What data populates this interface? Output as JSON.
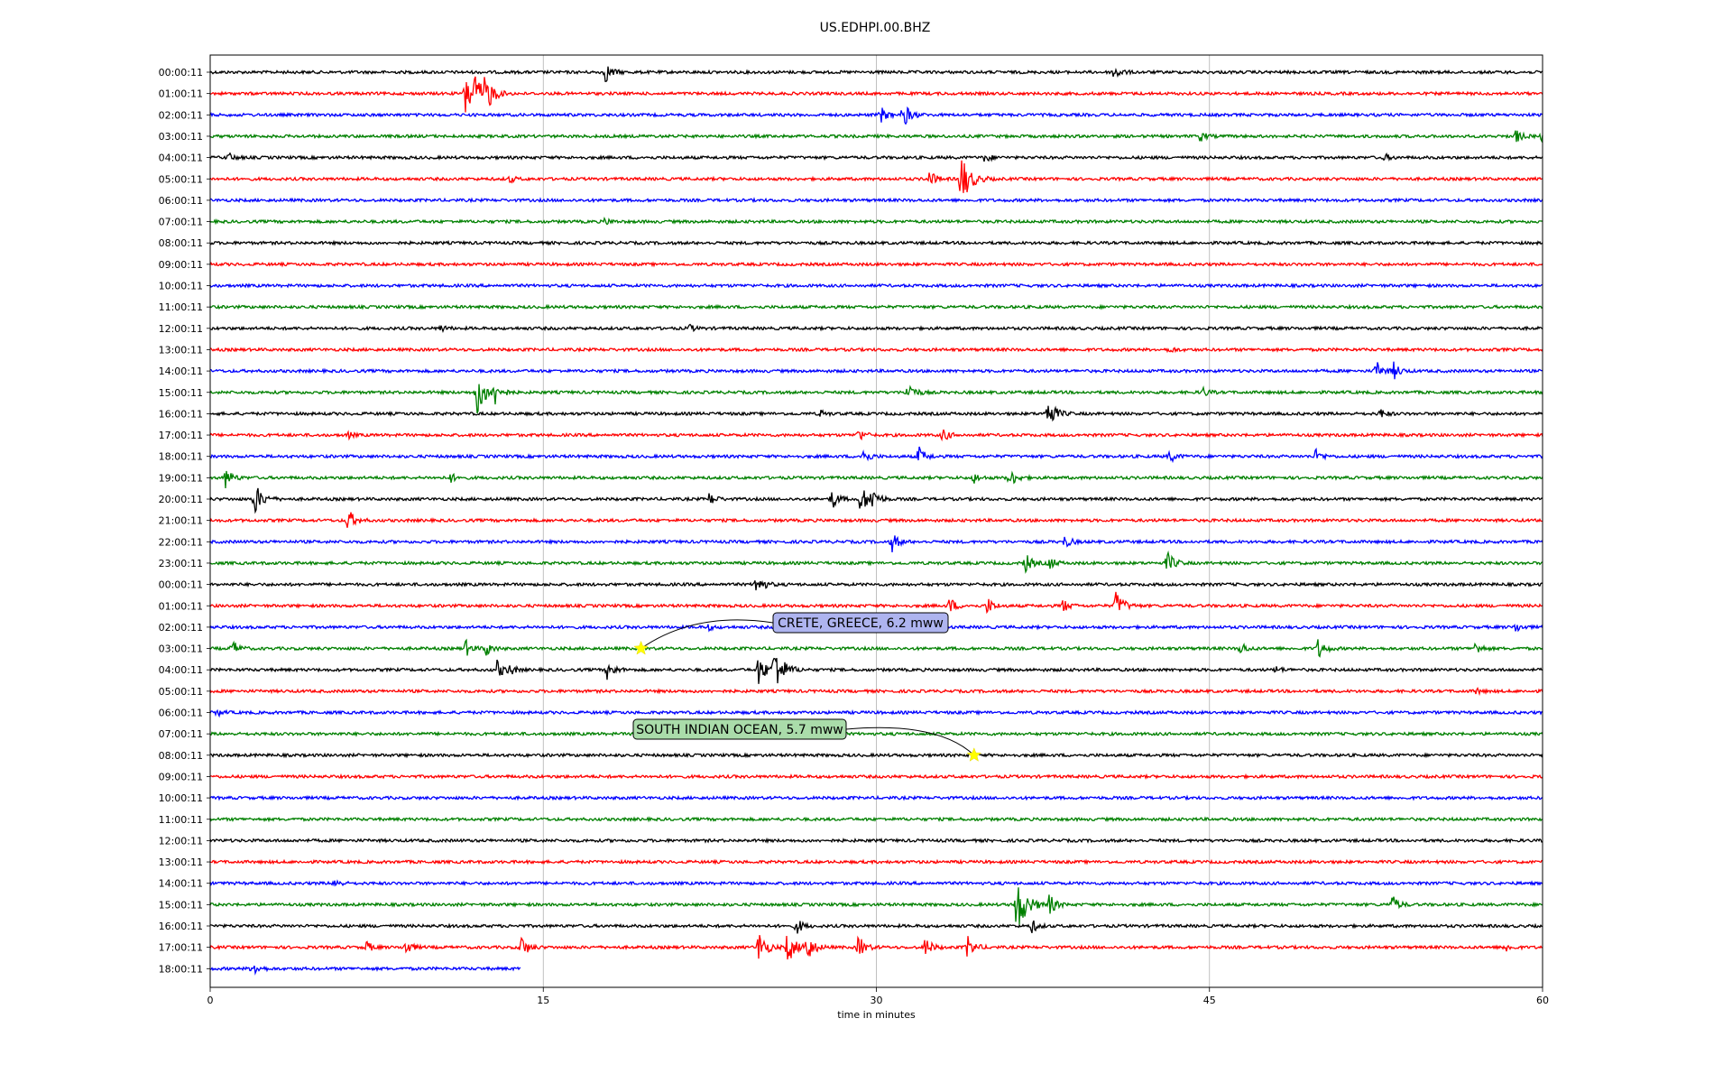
{
  "chart_data": {
    "type": "line",
    "title": "US.EDHPI.00.BHZ",
    "xlabel": "time in minutes",
    "xlim": [
      0,
      60
    ],
    "x_ticks": [
      0,
      15,
      30,
      45,
      60
    ],
    "grid": "vertical",
    "colors": [
      "#000000",
      "#ff0000",
      "#0000ff",
      "#008000"
    ],
    "rows": [
      {
        "label": "00:00:11",
        "events": [
          [
            17.8,
            0.6
          ],
          [
            40.7,
            0.5
          ]
        ]
      },
      {
        "label": "01:00:11",
        "events": [
          [
            11.5,
            1.4
          ],
          [
            12.4,
            1.1
          ],
          [
            11.9,
            0.9
          ]
        ]
      },
      {
        "label": "02:00:11",
        "events": [
          [
            30.2,
            0.5
          ],
          [
            31.2,
            0.8
          ]
        ]
      },
      {
        "label": "03:00:11",
        "events": [
          [
            44.6,
            0.3
          ],
          [
            58.8,
            0.4
          ],
          [
            60.0,
            0.5
          ]
        ]
      },
      {
        "label": "04:00:11",
        "events": [
          [
            0.8,
            0.3
          ],
          [
            34.9,
            0.3
          ],
          [
            52.9,
            0.2
          ]
        ]
      },
      {
        "label": "05:00:11",
        "events": [
          [
            33.8,
            1.6
          ],
          [
            32.4,
            0.5
          ],
          [
            13.5,
            0.2
          ]
        ]
      },
      {
        "label": "06:00:11",
        "events": []
      },
      {
        "label": "07:00:11",
        "events": [
          [
            17.8,
            0.2
          ]
        ]
      },
      {
        "label": "08:00:11",
        "events": []
      },
      {
        "label": "09:00:11",
        "events": []
      },
      {
        "label": "10:00:11",
        "events": []
      },
      {
        "label": "11:00:11",
        "events": []
      },
      {
        "label": "12:00:11",
        "events": [
          [
            10.4,
            0.2
          ],
          [
            21.6,
            0.2
          ]
        ]
      },
      {
        "label": "13:00:11",
        "events": [
          [
            43.2,
            0.2
          ]
        ]
      },
      {
        "label": "14:00:11",
        "events": [
          [
            52.5,
            0.6
          ],
          [
            53.3,
            0.5
          ]
        ]
      },
      {
        "label": "15:00:11",
        "events": [
          [
            12.0,
            1.4
          ],
          [
            12.8,
            0.7
          ],
          [
            31.4,
            0.7
          ],
          [
            44.7,
            0.3
          ]
        ]
      },
      {
        "label": "16:00:11",
        "events": [
          [
            37.7,
            1.0
          ],
          [
            52.7,
            0.3
          ],
          [
            27.5,
            0.2
          ]
        ]
      },
      {
        "label": "17:00:11",
        "events": [
          [
            29.2,
            0.4
          ],
          [
            33.0,
            0.4
          ],
          [
            6.2,
            0.2
          ]
        ]
      },
      {
        "label": "18:00:11",
        "events": [
          [
            29.4,
            0.5
          ],
          [
            31.9,
            0.6
          ],
          [
            43.2,
            0.4
          ],
          [
            49.8,
            0.4
          ]
        ]
      },
      {
        "label": "19:00:11",
        "events": [
          [
            0.7,
            0.6
          ],
          [
            10.8,
            0.3
          ],
          [
            36.0,
            0.6
          ],
          [
            34.4,
            0.3
          ]
        ]
      },
      {
        "label": "20:00:11",
        "events": [
          [
            2.0,
            1.0
          ],
          [
            22.5,
            0.4
          ],
          [
            28.0,
            0.6
          ],
          [
            29.3,
            0.9
          ],
          [
            29.8,
            0.6
          ]
        ]
      },
      {
        "label": "21:00:11",
        "events": [
          [
            6.2,
            0.7
          ]
        ]
      },
      {
        "label": "22:00:11",
        "events": [
          [
            30.7,
            0.6
          ],
          [
            38.5,
            0.4
          ]
        ]
      },
      {
        "label": "23:00:11",
        "events": [
          [
            36.7,
            0.6
          ],
          [
            43.1,
            0.7
          ],
          [
            37.8,
            0.4
          ]
        ]
      },
      {
        "label": "00:00:11",
        "events": [
          [
            24.6,
            0.7
          ]
        ]
      },
      {
        "label": "01:00:11",
        "events": [
          [
            40.8,
            0.9
          ],
          [
            33.3,
            0.5
          ],
          [
            35.0,
            0.5
          ],
          [
            38.4,
            0.4
          ]
        ]
      },
      {
        "label": "02:00:11",
        "events": [
          [
            22.4,
            0.2
          ],
          [
            58.8,
            0.3
          ]
        ]
      },
      {
        "label": "03:00:11",
        "events": [
          [
            1.0,
            0.5
          ],
          [
            11.5,
            0.5
          ],
          [
            12.4,
            0.5
          ],
          [
            46.4,
            0.4
          ],
          [
            49.9,
            0.6
          ],
          [
            57.0,
            0.4
          ]
        ]
      },
      {
        "label": "04:00:11",
        "events": [
          [
            25.4,
            1.5
          ],
          [
            24.7,
            0.9
          ],
          [
            12.9,
            0.6
          ],
          [
            17.9,
            0.6
          ],
          [
            13.5,
            0.3
          ],
          [
            48.0,
            0.2
          ]
        ]
      },
      {
        "label": "05:00:11",
        "events": [
          [
            57.0,
            0.2
          ]
        ]
      },
      {
        "label": "06:00:11",
        "events": [
          [
            0.3,
            0.2
          ]
        ]
      },
      {
        "label": "07:00:11",
        "events": []
      },
      {
        "label": "08:00:11",
        "events": []
      },
      {
        "label": "09:00:11",
        "events": []
      },
      {
        "label": "10:00:11",
        "events": []
      },
      {
        "label": "11:00:11",
        "events": []
      },
      {
        "label": "12:00:11",
        "events": []
      },
      {
        "label": "13:00:11",
        "events": []
      },
      {
        "label": "14:00:11",
        "events": [
          [
            5.6,
            0.3
          ]
        ]
      },
      {
        "label": "15:00:11",
        "events": [
          [
            36.3,
            1.8
          ],
          [
            37.8,
            0.6
          ],
          [
            53.2,
            0.6
          ]
        ]
      },
      {
        "label": "16:00:11",
        "events": [
          [
            26.4,
            0.5
          ],
          [
            37.0,
            0.4
          ]
        ]
      },
      {
        "label": "17:00:11",
        "events": [
          [
            24.7,
            1.0
          ],
          [
            26.0,
            1.0
          ],
          [
            26.8,
            1.0
          ],
          [
            29.2,
            0.7
          ],
          [
            32.2,
            0.6
          ],
          [
            34.1,
            0.7
          ],
          [
            14.0,
            0.7
          ],
          [
            8.8,
            0.5
          ],
          [
            7.0,
            0.4
          ],
          [
            58.3,
            0.3
          ]
        ]
      },
      {
        "label": "18:00:11",
        "end": 14.0,
        "events": [
          [
            1.9,
            0.5
          ]
        ]
      }
    ],
    "annotations": [
      {
        "text": "CRETE, GREECE, 6.2 mww",
        "row": 27,
        "x": 19.4,
        "box": "#aeb4ef"
      },
      {
        "text": "SOUTH INDIAN OCEAN, 5.7 mww",
        "row": 32,
        "x": 34.4,
        "box": "#aadcaa"
      }
    ]
  }
}
